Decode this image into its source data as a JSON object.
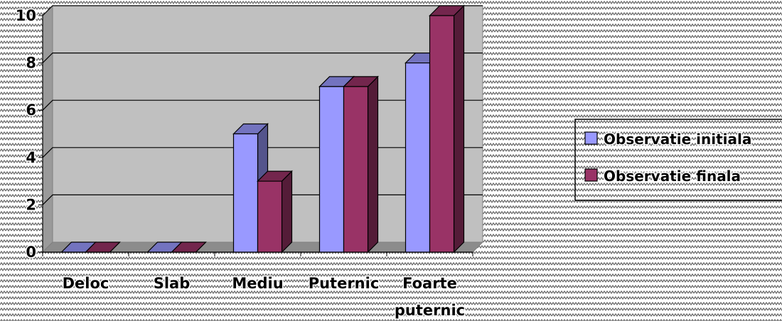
{
  "chart_data": {
    "type": "bar",
    "categories": [
      "Deloc",
      "Slab",
      "Mediu",
      "Puternic",
      "Foarte puternic"
    ],
    "category_lines": [
      [
        "Deloc"
      ],
      [
        "Slab"
      ],
      [
        "Mediu"
      ],
      [
        "Puternic"
      ],
      [
        "Foarte",
        "puternic"
      ]
    ],
    "series": [
      {
        "name": "Observatie initiala",
        "values": [
          0,
          0,
          5,
          7,
          8
        ],
        "color": "#9999ff"
      },
      {
        "name": "Observatie finala",
        "values": [
          0,
          0,
          3,
          7,
          10
        ],
        "color": "#993366"
      }
    ],
    "ylim": [
      0,
      10
    ],
    "yticks": [
      "0",
      "2",
      "4",
      "6",
      "8",
      "10"
    ],
    "grid": true,
    "legend_position": "right",
    "plot_background": "#c0c0c0",
    "style": "3d-clustered-column"
  }
}
